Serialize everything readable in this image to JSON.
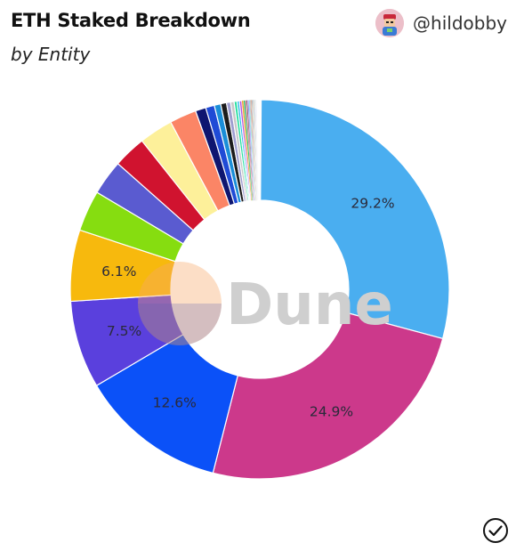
{
  "header": {
    "title": "ETH Staked Breakdown",
    "subtitle": "by Entity",
    "author_handle": "@hildobby"
  },
  "watermark": "Dune",
  "icons": {
    "avatar": "user-avatar-icon",
    "status": "check-circle-icon"
  },
  "chart_data": {
    "type": "pie",
    "style": "donut",
    "title": "ETH Staked Breakdown",
    "subtitle": "by Entity",
    "legend": "none",
    "slices": [
      {
        "value": 29.2,
        "color": "#4aaef0",
        "label": "29.2%"
      },
      {
        "value": 24.9,
        "color": "#cc398b",
        "label": "24.9%"
      },
      {
        "value": 12.6,
        "color": "#0b51f8",
        "label": "12.6%"
      },
      {
        "value": 7.5,
        "color": "#5a40dd",
        "label": "7.5%"
      },
      {
        "value": 6.1,
        "color": "#f7b90d",
        "label": "6.1%"
      },
      {
        "value": 3.5,
        "color": "#86dd10"
      },
      {
        "value": 3.0,
        "color": "#5a5bd0"
      },
      {
        "value": 2.8,
        "color": "#d0132f"
      },
      {
        "value": 2.9,
        "color": "#fdf09a"
      },
      {
        "value": 2.3,
        "color": "#fb8566"
      },
      {
        "value": 0.9,
        "color": "#0e1670"
      },
      {
        "value": 0.75,
        "color": "#1f4bd6"
      },
      {
        "value": 0.55,
        "color": "#1a8ed8"
      },
      {
        "value": 0.5,
        "color": "#1c1c1c"
      },
      {
        "value": 0.35,
        "color": "#9e9ed0"
      },
      {
        "value": 0.3,
        "color": "#c8c8c8"
      },
      {
        "value": 0.25,
        "color": "#28e0a0"
      },
      {
        "value": 0.2,
        "color": "#22b8e8"
      },
      {
        "value": 0.2,
        "color": "#b84de0"
      },
      {
        "value": 0.15,
        "color": "#f0a030"
      },
      {
        "value": 0.15,
        "color": "#30c070"
      },
      {
        "value": 0.1,
        "color": "#e04070"
      },
      {
        "value": 0.1,
        "color": "#606060"
      },
      {
        "value": 0.1,
        "color": "#9080ff"
      },
      {
        "value": 0.08,
        "color": "#40d0d0"
      },
      {
        "value": 0.08,
        "color": "#a0a0a0"
      },
      {
        "value": 0.07,
        "color": "#c06030"
      },
      {
        "value": 0.07,
        "color": "#7070a0"
      },
      {
        "value": 0.06,
        "color": "#e0e060"
      },
      {
        "value": 0.06,
        "color": "#5080c0"
      },
      {
        "value": 0.05,
        "color": "#d080a0"
      },
      {
        "value": 0.05,
        "color": "#80c080"
      },
      {
        "value": 0.05,
        "color": "#b0b0e0"
      },
      {
        "value": 0.04,
        "color": "#d0d0d0"
      },
      {
        "value": 0.04,
        "color": "#ccccee"
      }
    ]
  }
}
